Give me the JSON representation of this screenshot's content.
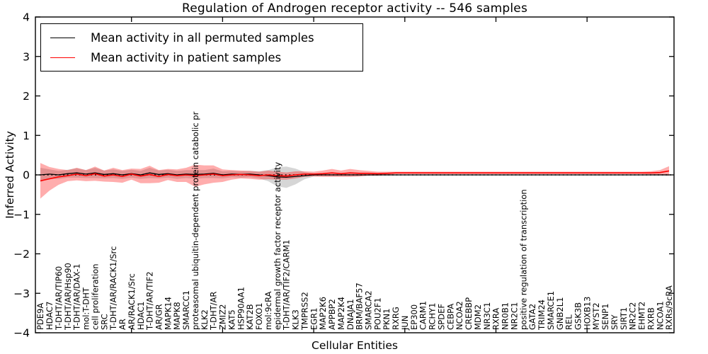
{
  "chart_data": {
    "type": "line",
    "title": "Regulation of Androgen receptor activity -- 546 samples",
    "xlabel": "Cellular Entities",
    "ylabel": "Inferred Activity",
    "ylim": [
      -4,
      4
    ],
    "yticks": [
      -4,
      -3,
      -2,
      -1,
      0,
      1,
      2,
      3,
      4
    ],
    "grid": false,
    "legend_position": "upper left",
    "reference_line": {
      "y": 0,
      "style": "dotted",
      "color": "#000000"
    },
    "categories": [
      "PDE9A",
      "HDAC7",
      "T-DHT/AR/TIP60",
      "T-DHT/AR/Hsp90",
      "T-DHT/AR/DAX-1",
      "mol:T-DHT",
      "cell proliferation",
      "SRC",
      "T-DHT/AR/RACK1/Src",
      "AR",
      "AR/RACK1/Src",
      "HDAC1",
      "T-DHT/AR/TIF2",
      "AR/GR",
      "MAPK14",
      "MAPK8",
      "SMARCC1",
      "proteasomal ubiquitin-dependent protein catabolic pr",
      "KLK2",
      "T-DHT/AR",
      "ZMIZ2",
      "KAT5",
      "HSP90AA1",
      "KAT2B",
      "FOXO1",
      "mol:9cRA",
      "epidermal growth factor receptor activity",
      "T-DHT/AR/TIF2/CARM1",
      "KLK3",
      "TMPRSS2",
      "EGR1",
      "MAP2K6",
      "APPBP2",
      "MAP2K4",
      "DNAJA1",
      "BRM/BAF57",
      "SMARCA2",
      "POU2F1",
      "PKN1",
      "RXRG",
      "JUN",
      "EP300",
      "CARM1",
      "RCHY1",
      "SPDEF",
      "CEBPA",
      "NCOA2",
      "CREBBP",
      "MDM2",
      "NR3C1",
      "RXRA",
      "NR0B1",
      "NR2C1",
      "positive regulation of transcription",
      "GATA2",
      "TRIM24",
      "SMARCE1",
      "GNB2L1",
      "REL",
      "GSK3B",
      "HOXB13",
      "MYST2",
      "SENP1",
      "SRY",
      "SIRT1",
      "NR2C2",
      "EHMT2",
      "RXRB",
      "NCOA1",
      "RXRs/9cRA"
    ],
    "series": [
      {
        "name": "Mean activity in all permuted samples",
        "color": "#000000",
        "band_color": "rgba(90,90,90,0.25)",
        "values": [
          0.0,
          0.02,
          0.0,
          0.03,
          0.05,
          0.02,
          0.05,
          0.01,
          0.03,
          0.0,
          0.03,
          0.0,
          0.05,
          0.01,
          0.03,
          0.0,
          0.02,
          0.01,
          0.02,
          0.04,
          0.0,
          0.02,
          0.01,
          0.02,
          0.0,
          -0.02,
          -0.05,
          -0.06,
          -0.04,
          -0.02,
          0.0,
          0.0,
          0.0,
          0.0,
          0.0,
          0.0,
          0.0,
          0.0,
          0.0,
          0.0,
          0.0,
          0.0,
          0.0,
          0.0,
          0.0,
          0.0,
          0.0,
          0.0,
          0.0,
          0.0,
          0.0,
          0.0,
          0.0,
          0.0,
          0.0,
          0.0,
          0.0,
          0.0,
          0.0,
          0.0,
          0.0,
          0.0,
          0.0,
          0.0,
          0.0,
          0.0,
          0.0,
          0.0,
          0.0,
          0.0
        ],
        "band_halfwidth": [
          0.18,
          0.12,
          0.1,
          0.1,
          0.12,
          0.1,
          0.13,
          0.1,
          0.11,
          0.1,
          0.1,
          0.1,
          0.13,
          0.1,
          0.1,
          0.1,
          0.1,
          0.11,
          0.1,
          0.12,
          0.09,
          0.08,
          0.08,
          0.08,
          0.09,
          0.14,
          0.24,
          0.27,
          0.2,
          0.09,
          0.04,
          0.03,
          0.03,
          0.03,
          0.03,
          0.03,
          0.02,
          0.02,
          0.02,
          0.015,
          0.015,
          0.015,
          0.015,
          0.015,
          0.015,
          0.015,
          0.015,
          0.015,
          0.015,
          0.015,
          0.015,
          0.015,
          0.015,
          0.015,
          0.015,
          0.015,
          0.015,
          0.015,
          0.015,
          0.015,
          0.015,
          0.015,
          0.015,
          0.015,
          0.015,
          0.015,
          0.015,
          0.015,
          0.02,
          0.02
        ]
      },
      {
        "name": "Mean activity in patient samples",
        "color": "#ff0000",
        "band_color": "rgba(255,0,0,0.32)",
        "values": [
          -0.15,
          -0.1,
          -0.05,
          -0.02,
          0.02,
          -0.02,
          0.03,
          -0.03,
          0.0,
          -0.04,
          0.02,
          -0.03,
          0.01,
          -0.04,
          0.01,
          -0.02,
          0.0,
          -0.02,
          0.0,
          0.02,
          -0.02,
          0.0,
          0.01,
          0.0,
          -0.02,
          0.0,
          -0.02,
          -0.03,
          0.0,
          0.02,
          0.02,
          0.03,
          0.05,
          0.03,
          0.05,
          0.04,
          0.04,
          0.03,
          0.04,
          0.05,
          0.05,
          0.05,
          0.05,
          0.05,
          0.05,
          0.05,
          0.05,
          0.05,
          0.05,
          0.05,
          0.05,
          0.05,
          0.05,
          0.05,
          0.05,
          0.05,
          0.05,
          0.05,
          0.05,
          0.05,
          0.05,
          0.05,
          0.05,
          0.05,
          0.05,
          0.05,
          0.05,
          0.05,
          0.06,
          0.1
        ],
        "band_halfwidth": [
          0.45,
          0.3,
          0.2,
          0.14,
          0.16,
          0.14,
          0.18,
          0.14,
          0.18,
          0.16,
          0.14,
          0.18,
          0.22,
          0.16,
          0.14,
          0.16,
          0.18,
          0.28,
          0.24,
          0.22,
          0.16,
          0.12,
          0.1,
          0.1,
          0.1,
          0.11,
          0.1,
          0.09,
          0.09,
          0.07,
          0.06,
          0.08,
          0.1,
          0.08,
          0.1,
          0.08,
          0.06,
          0.05,
          0.04,
          0.03,
          0.03,
          0.03,
          0.03,
          0.03,
          0.03,
          0.03,
          0.03,
          0.03,
          0.03,
          0.03,
          0.03,
          0.03,
          0.03,
          0.03,
          0.03,
          0.03,
          0.03,
          0.03,
          0.03,
          0.03,
          0.03,
          0.03,
          0.03,
          0.03,
          0.03,
          0.03,
          0.03,
          0.04,
          0.06,
          0.12
        ]
      }
    ]
  },
  "legend": {
    "entries": [
      {
        "label": "Mean activity in all permuted samples",
        "color": "#000000"
      },
      {
        "label": "Mean activity in patient samples",
        "color": "#ff0000"
      }
    ]
  },
  "axis_color": "#000000"
}
